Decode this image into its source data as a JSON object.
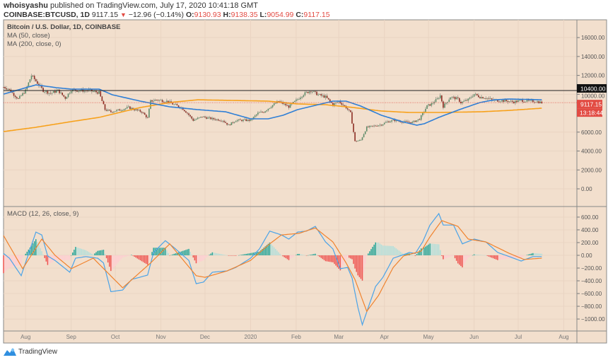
{
  "header": {
    "author": "whoisyashu",
    "published_text": "published on TradingView.com, July 17, 2020 10:41:18 GMT",
    "symbol": "COINBASE:BTCUSD, 1D",
    "last": "9117.15",
    "change": "−12.96 (−0.14%)",
    "o_label": "O:",
    "o": "9130.93",
    "h_label": "H:",
    "h": "9138.35",
    "l_label": "L:",
    "l": "9054.99",
    "c_label": "C:",
    "c": "9117.15"
  },
  "legend": {
    "title": "Bitcoin / U.S. Dollar, 1D, COINBASE",
    "ma50": "MA (50, close)",
    "ma200": "MA (200, close, 0)",
    "macd": "MACD (12, 26, close, 9)"
  },
  "footer": {
    "brand": "TradingView",
    "logo_icon": "tradingview-logo-icon"
  },
  "colors": {
    "background": "#f2dfcd",
    "grid": "#e9d4c2",
    "up_candle": "#5d8d69",
    "down_candle": "#8d2e24",
    "ma50": "#2f7fd6",
    "ma200": "#f7a11b",
    "macd_line": "#4aa3e8",
    "signal_line": "#f0832e",
    "hist_pos_rising": "#26a69a",
    "hist_pos_falling": "#b2dfdb",
    "hist_neg_falling": "#ef5350",
    "hist_neg_rising": "#ffcdd2",
    "price_label": "#e24b43",
    "resistance_line": "#222222"
  },
  "chart_data": [
    {
      "type": "candlestick",
      "pane": "price",
      "ylim": [
        -1870,
        17880
      ],
      "grid": true,
      "y_ticks": [
        "16000.00",
        "14000.00",
        "12000.00",
        "10000.00",
        "6000.00",
        "4000.00",
        "2000.00",
        "0.00"
      ],
      "y_tick_values": [
        16000,
        14000,
        12000,
        10000,
        6000,
        4000,
        2000,
        0
      ],
      "x_ticks": [
        "Aug",
        "Sep",
        "Oct",
        "Nov",
        "Dec",
        "2020",
        "Feb",
        "Mar",
        "Apr",
        "May",
        "Jun",
        "Jul",
        "Aug"
      ],
      "x_tick_dates": [
        "2019-08-01",
        "2019-09-01",
        "2019-10-01",
        "2019-11-01",
        "2019-12-01",
        "2020-01-01",
        "2020-02-01",
        "2020-03-01",
        "2020-04-01",
        "2020-05-01",
        "2020-06-01",
        "2020-07-01",
        "2020-08-01"
      ],
      "horizontal_line": {
        "value": 10400,
        "label": "10400.00"
      },
      "last_price": {
        "value": 9117.15,
        "label": "9117.15",
        "countdown": "13:18:44"
      },
      "close": [
        [
          "2019-07-17",
          10770
        ],
        [
          "2019-07-20",
          10600
        ],
        [
          "2019-07-27",
          9500
        ],
        [
          "2019-08-01",
          10400
        ],
        [
          "2019-08-05",
          12000
        ],
        [
          "2019-08-08",
          11400
        ],
        [
          "2019-08-13",
          10400
        ],
        [
          "2019-08-18",
          10100
        ],
        [
          "2019-08-23",
          10400
        ],
        [
          "2019-08-28",
          9600
        ],
        [
          "2019-09-01",
          10470
        ],
        [
          "2019-09-06",
          10400
        ],
        [
          "2019-09-13",
          10400
        ],
        [
          "2019-09-20",
          10170
        ],
        [
          "2019-09-24",
          8380
        ],
        [
          "2019-09-28",
          8150
        ],
        [
          "2019-10-05",
          8380
        ],
        [
          "2019-10-10",
          8600
        ],
        [
          "2019-10-17",
          8230
        ],
        [
          "2019-10-19",
          8150
        ],
        [
          "2019-10-23",
          7480
        ],
        [
          "2019-10-25",
          9270
        ],
        [
          "2019-10-29",
          9420
        ],
        [
          "2019-11-05",
          9270
        ],
        [
          "2019-11-10",
          8900
        ],
        [
          "2019-11-15",
          8600
        ],
        [
          "2019-11-19",
          8000
        ],
        [
          "2019-11-23",
          7250
        ],
        [
          "2019-11-29",
          7630
        ],
        [
          "2019-12-06",
          7400
        ],
        [
          "2019-12-13",
          7250
        ],
        [
          "2019-12-17",
          6730
        ],
        [
          "2019-12-22",
          7250
        ],
        [
          "2020-01-01",
          7250
        ],
        [
          "2020-01-06",
          8000
        ],
        [
          "2020-01-10",
          8150
        ],
        [
          "2020-01-15",
          8750
        ],
        [
          "2020-01-20",
          9270
        ],
        [
          "2020-01-27",
          8680
        ],
        [
          "2020-02-01",
          9350
        ],
        [
          "2020-02-06",
          10020
        ],
        [
          "2020-02-11",
          10400
        ],
        [
          "2020-02-16",
          9950
        ],
        [
          "2020-02-21",
          9720
        ],
        [
          "2020-02-26",
          8900
        ],
        [
          "2020-03-01",
          9270
        ],
        [
          "2020-03-06",
          8600
        ],
        [
          "2020-03-09",
          8000
        ],
        [
          "2020-03-12",
          5010
        ],
        [
          "2020-03-16",
          5160
        ],
        [
          "2020-03-20",
          6500
        ],
        [
          "2020-03-25",
          6650
        ],
        [
          "2020-03-30",
          6800
        ],
        [
          "2020-04-03",
          7100
        ],
        [
          "2020-04-08",
          7250
        ],
        [
          "2020-04-13",
          7100
        ],
        [
          "2020-04-20",
          7030
        ],
        [
          "2020-04-25",
          7400
        ],
        [
          "2020-04-30",
          8750
        ],
        [
          "2020-05-03",
          8980
        ],
        [
          "2020-05-07",
          9500
        ],
        [
          "2020-05-09",
          9870
        ],
        [
          "2020-05-11",
          8700
        ],
        [
          "2020-05-16",
          9720
        ],
        [
          "2020-05-21",
          9500
        ],
        [
          "2020-05-23",
          9120
        ],
        [
          "2020-05-28",
          9420
        ],
        [
          "2020-06-01",
          10020
        ],
        [
          "2020-06-05",
          9720
        ],
        [
          "2020-06-09",
          9650
        ],
        [
          "2020-06-14",
          9350
        ],
        [
          "2020-06-19",
          9350
        ],
        [
          "2020-06-24",
          9270
        ],
        [
          "2020-06-28",
          9200
        ],
        [
          "2020-07-03",
          9350
        ],
        [
          "2020-07-08",
          9270
        ],
        [
          "2020-07-13",
          9270
        ],
        [
          "2020-07-17",
          9117.15
        ]
      ],
      "series": [
        {
          "name": "MA (50, close)",
          "values": [
            [
              "2019-07-17",
              10020
            ],
            [
              "2019-08-08",
              11000
            ],
            [
              "2019-08-22",
              10700
            ],
            [
              "2019-09-01",
              10550
            ],
            [
              "2019-09-20",
              10550
            ],
            [
              "2019-09-29",
              9950
            ],
            [
              "2019-10-18",
              9280
            ],
            [
              "2019-11-07",
              8680
            ],
            [
              "2019-11-26",
              8380
            ],
            [
              "2019-12-15",
              8150
            ],
            [
              "2020-01-01",
              7410
            ],
            [
              "2020-01-13",
              7410
            ],
            [
              "2020-01-23",
              7780
            ],
            [
              "2020-02-02",
              8380
            ],
            [
              "2020-02-16",
              8900
            ],
            [
              "2020-02-26",
              9280
            ],
            [
              "2020-03-06",
              9280
            ],
            [
              "2020-03-16",
              8750
            ],
            [
              "2020-03-30",
              7780
            ],
            [
              "2020-04-13",
              7110
            ],
            [
              "2020-04-23",
              6730
            ],
            [
              "2020-04-28",
              6880
            ],
            [
              "2020-05-08",
              7560
            ],
            [
              "2020-05-22",
              8380
            ],
            [
              "2020-06-05",
              9130
            ],
            [
              "2020-06-15",
              9420
            ],
            [
              "2020-06-25",
              9500
            ],
            [
              "2020-07-17",
              9420
            ]
          ]
        },
        {
          "name": "MA (200, close, 0)",
          "values": [
            [
              "2019-07-17",
              6060
            ],
            [
              "2019-08-08",
              6510
            ],
            [
              "2019-09-01",
              7110
            ],
            [
              "2019-09-20",
              7560
            ],
            [
              "2019-10-18",
              8600
            ],
            [
              "2019-11-07",
              9130
            ],
            [
              "2019-11-26",
              9420
            ],
            [
              "2019-12-20",
              9350
            ],
            [
              "2020-01-13",
              9280
            ],
            [
              "2020-02-02",
              8980
            ],
            [
              "2020-02-21",
              8900
            ],
            [
              "2020-03-11",
              8600
            ],
            [
              "2020-03-30",
              8230
            ],
            [
              "2020-04-18",
              8080
            ],
            [
              "2020-05-08",
              8080
            ],
            [
              "2020-06-05",
              8150
            ],
            [
              "2020-06-25",
              8300
            ],
            [
              "2020-07-17",
              8530
            ]
          ]
        }
      ]
    },
    {
      "type": "line",
      "pane": "macd",
      "ylim": [
        -1188,
        766
      ],
      "grid": true,
      "y_ticks": [
        "600.00",
        "400.00",
        "200.00",
        "0.00",
        "−200.00",
        "−400.00",
        "−600.00",
        "−800.00",
        "−1000.00"
      ],
      "y_tick_values": [
        600,
        400,
        200,
        0,
        -200,
        -400,
        -600,
        -800,
        -1000
      ],
      "series": [
        {
          "name": "MACD",
          "values": [
            [
              "2019-07-17",
              30
            ],
            [
              "2019-07-21",
              -45
            ],
            [
              "2019-07-29",
              -320
            ],
            [
              "2019-08-08",
              365
            ],
            [
              "2019-08-12",
              320
            ],
            [
              "2019-08-16",
              -10
            ],
            [
              "2019-08-21",
              -80
            ],
            [
              "2019-08-31",
              -265
            ],
            [
              "2019-09-04",
              -45
            ],
            [
              "2019-09-11",
              -20
            ],
            [
              "2019-09-19",
              -45
            ],
            [
              "2019-09-23",
              -120
            ],
            [
              "2019-09-28",
              -570
            ],
            [
              "2019-10-06",
              -545
            ],
            [
              "2019-10-12",
              -380
            ],
            [
              "2019-10-23",
              -310
            ],
            [
              "2019-10-27",
              45
            ],
            [
              "2019-11-04",
              230
            ],
            [
              "2019-11-10",
              120
            ],
            [
              "2019-11-20",
              -80
            ],
            [
              "2019-11-25",
              -445
            ],
            [
              "2019-11-30",
              -420
            ],
            [
              "2019-12-06",
              -265
            ],
            [
              "2019-12-16",
              -245
            ],
            [
              "2019-12-22",
              -190
            ],
            [
              "2020-01-01",
              -45
            ],
            [
              "2020-01-07",
              100
            ],
            [
              "2020-01-14",
              380
            ],
            [
              "2020-01-22",
              320
            ],
            [
              "2020-01-27",
              255
            ],
            [
              "2020-02-02",
              365
            ],
            [
              "2020-02-08",
              380
            ],
            [
              "2020-02-14",
              455
            ],
            [
              "2020-02-21",
              210
            ],
            [
              "2020-02-26",
              100
            ],
            [
              "2020-03-02",
              -210
            ],
            [
              "2020-03-07",
              -190
            ],
            [
              "2020-03-10",
              -355
            ],
            [
              "2020-03-14",
              -820
            ],
            [
              "2020-03-17",
              -1090
            ],
            [
              "2020-03-21",
              -820
            ],
            [
              "2020-03-26",
              -490
            ],
            [
              "2020-03-31",
              -345
            ],
            [
              "2020-04-07",
              -45
            ],
            [
              "2020-04-14",
              10
            ],
            [
              "2020-04-18",
              45
            ],
            [
              "2020-04-22",
              30
            ],
            [
              "2020-04-27",
              210
            ],
            [
              "2020-05-02",
              475
            ],
            [
              "2020-05-08",
              655
            ],
            [
              "2020-05-11",
              475
            ],
            [
              "2020-05-18",
              475
            ],
            [
              "2020-05-24",
              180
            ],
            [
              "2020-06-01",
              255
            ],
            [
              "2020-06-09",
              210
            ],
            [
              "2020-06-17",
              45
            ],
            [
              "2020-06-25",
              -20
            ],
            [
              "2020-07-03",
              -90
            ],
            [
              "2020-07-11",
              -20
            ],
            [
              "2020-07-17",
              -20
            ]
          ]
        },
        {
          "name": "Signal",
          "values": [
            [
              "2019-07-17",
              310
            ],
            [
              "2019-07-30",
              -210
            ],
            [
              "2019-08-12",
              255
            ],
            [
              "2019-08-21",
              0
            ],
            [
              "2019-09-01",
              -210
            ],
            [
              "2019-09-16",
              -45
            ],
            [
              "2019-10-06",
              -510
            ],
            [
              "2019-10-25",
              -120
            ],
            [
              "2019-11-07",
              180
            ],
            [
              "2019-11-25",
              -320
            ],
            [
              "2019-12-01",
              -345
            ],
            [
              "2019-12-16",
              -245
            ],
            [
              "2020-01-01",
              -80
            ],
            [
              "2020-01-14",
              180
            ],
            [
              "2020-01-22",
              320
            ],
            [
              "2020-02-03",
              345
            ],
            [
              "2020-02-14",
              430
            ],
            [
              "2020-02-26",
              210
            ],
            [
              "2020-03-06",
              -120
            ],
            [
              "2020-03-12",
              -380
            ],
            [
              "2020-03-20",
              -880
            ],
            [
              "2020-03-28",
              -630
            ],
            [
              "2020-04-07",
              -190
            ],
            [
              "2020-04-14",
              -10
            ],
            [
              "2020-04-26",
              65
            ],
            [
              "2020-05-02",
              290
            ],
            [
              "2020-05-10",
              545
            ],
            [
              "2020-05-21",
              455
            ],
            [
              "2020-05-28",
              255
            ],
            [
              "2020-06-09",
              210
            ],
            [
              "2020-06-25",
              30
            ],
            [
              "2020-07-05",
              -65
            ],
            [
              "2020-07-17",
              -45
            ]
          ]
        }
      ]
    }
  ]
}
